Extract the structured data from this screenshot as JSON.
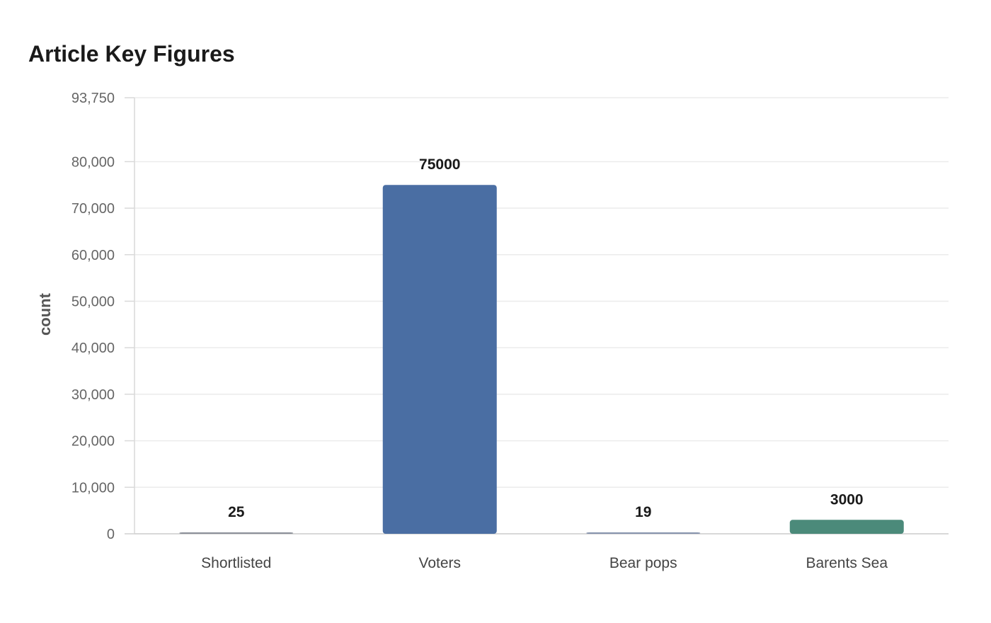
{
  "chart_data": {
    "type": "bar",
    "title": "Article Key Figures",
    "xlabel": "",
    "ylabel": "count",
    "categories": [
      "Shortlisted",
      "Voters",
      "Bear pops",
      "Barents Sea"
    ],
    "values": [
      25,
      75000,
      19,
      3000
    ],
    "value_labels": [
      "25",
      "75000",
      "19",
      "3000"
    ],
    "colors": [
      "#8c9099",
      "#4a6ea3",
      "#8794ad",
      "#4b8a7a"
    ],
    "ylim": [
      0,
      93750
    ],
    "yticks": [
      0,
      10000,
      20000,
      30000,
      40000,
      50000,
      60000,
      70000,
      80000,
      93750
    ],
    "ytick_labels": [
      "0",
      "10,000",
      "20,000",
      "30,000",
      "40,000",
      "50,000",
      "60,000",
      "70,000",
      "80,000",
      "93,750"
    ],
    "grid": true,
    "legend": "none"
  }
}
